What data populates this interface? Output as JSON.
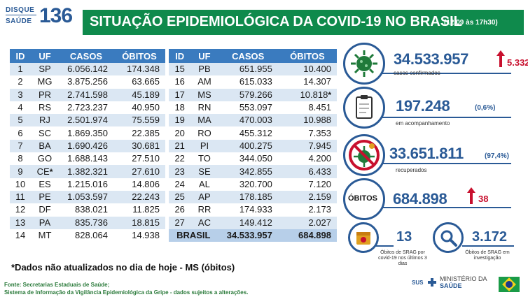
{
  "header": {
    "logo_line1": "DISQUE",
    "logo_line2": "SAÚDE",
    "logo_number": "136",
    "title": "SITUAÇÃO EPIDEMIOLÓGICA DA COVID-19 NO BRASIL",
    "date": "(12/09 às 17h30)"
  },
  "table": {
    "columns": [
      "ID",
      "UF",
      "CASOS",
      "ÓBITOS"
    ],
    "left_rows": [
      {
        "id": "1",
        "uf": "SP",
        "casos": "6.056.142",
        "obitos": "174.348"
      },
      {
        "id": "2",
        "uf": "MG",
        "casos": "3.875.256",
        "obitos": "63.665"
      },
      {
        "id": "3",
        "uf": "PR",
        "casos": "2.741.598",
        "obitos": "45.189"
      },
      {
        "id": "4",
        "uf": "RS",
        "casos": "2.723.237",
        "obitos": "40.950"
      },
      {
        "id": "5",
        "uf": "RJ",
        "casos": "2.501.974",
        "obitos": "75.559"
      },
      {
        "id": "6",
        "uf": "SC",
        "casos": "1.869.350",
        "obitos": "22.385"
      },
      {
        "id": "7",
        "uf": "BA",
        "casos": "1.690.426",
        "obitos": "30.681"
      },
      {
        "id": "8",
        "uf": "GO",
        "casos": "1.688.143",
        "obitos": "27.510"
      },
      {
        "id": "9",
        "uf": "CE",
        "uf_mark": "*",
        "casos": "1.382.321",
        "obitos": "27.610"
      },
      {
        "id": "10",
        "uf": "ES",
        "casos": "1.215.016",
        "obitos": "14.806"
      },
      {
        "id": "11",
        "uf": "PE",
        "casos": "1.053.597",
        "obitos": "22.243"
      },
      {
        "id": "12",
        "uf": "DF",
        "casos": "838.021",
        "obitos": "11.825"
      },
      {
        "id": "13",
        "uf": "PA",
        "casos": "835.736",
        "obitos": "18.815"
      },
      {
        "id": "14",
        "uf": "MT",
        "casos": "828.064",
        "obitos": "14.938"
      }
    ],
    "right_rows": [
      {
        "id": "15",
        "uf": "PB",
        "casos": "651.955",
        "obitos": "10.400"
      },
      {
        "id": "16",
        "uf": "AM",
        "casos": "615.033",
        "obitos": "14.307"
      },
      {
        "id": "17",
        "uf": "MS",
        "casos": "579.266",
        "obitos": "10.818",
        "obitos_mark": "*"
      },
      {
        "id": "18",
        "uf": "RN",
        "casos": "553.097",
        "obitos": "8.451"
      },
      {
        "id": "19",
        "uf": "MA",
        "casos": "470.003",
        "obitos": "10.988"
      },
      {
        "id": "20",
        "uf": "RO",
        "casos": "455.312",
        "obitos": "7.353"
      },
      {
        "id": "21",
        "uf": "PI",
        "casos": "400.275",
        "obitos": "7.945"
      },
      {
        "id": "22",
        "uf": "TO",
        "casos": "344.050",
        "obitos": "4.200"
      },
      {
        "id": "23",
        "uf": "SE",
        "casos": "342.855",
        "obitos": "6.433"
      },
      {
        "id": "24",
        "uf": "AL",
        "casos": "320.700",
        "obitos": "7.120"
      },
      {
        "id": "25",
        "uf": "AP",
        "casos": "178.185",
        "obitos": "2.159"
      },
      {
        "id": "26",
        "uf": "RR",
        "casos": "174.933",
        "obitos": "2.173"
      },
      {
        "id": "27",
        "uf": "AC",
        "casos": "149.412",
        "obitos": "2.027"
      }
    ],
    "total": {
      "label": "BRASIL",
      "casos": "34.533.957",
      "obitos": "684.898"
    }
  },
  "note": "*Dados não atualizados no dia de hoje - MS (óbitos)",
  "footer": {
    "line1": "Fonte: Secretarias Estaduais de Saúde;",
    "line2": "Sistema de Informação da Vigilância Epidemiológica da Gripe - dados sujeitos a alterações."
  },
  "indicators": {
    "confirmed": {
      "value": "34.533.957",
      "delta": "5.332",
      "label": "casos confirmados",
      "icon": "virus-icon"
    },
    "monitoring": {
      "value": "197.248",
      "pct": "(0,6%)",
      "label": "em acompanhamento",
      "icon": "clipboard-icon"
    },
    "recovered": {
      "value": "33.651.811",
      "pct": "(97,4%)",
      "label": "recuperados",
      "icon": "no-virus-icon"
    },
    "deaths": {
      "value": "684.898",
      "delta": "38",
      "label": "ÓBITOS"
    },
    "srag_recent": {
      "value": "13",
      "label": "Óbitos de SRAG por covid-19 nos últimos 3 dias",
      "icon": "calendar-icon"
    },
    "srag_investigation": {
      "value": "3.172",
      "label": "Óbitos de SRAG em investigação",
      "icon": "magnifier-icon"
    }
  },
  "ministry": {
    "sus": "SUS",
    "line1": "MINISTÉRIO DA",
    "line2": "SAÚDE"
  },
  "colors": {
    "green": "#0f8a4c",
    "blue": "#2a5a96",
    "header_blue": "#3a7bbf",
    "red": "#c8102e"
  }
}
